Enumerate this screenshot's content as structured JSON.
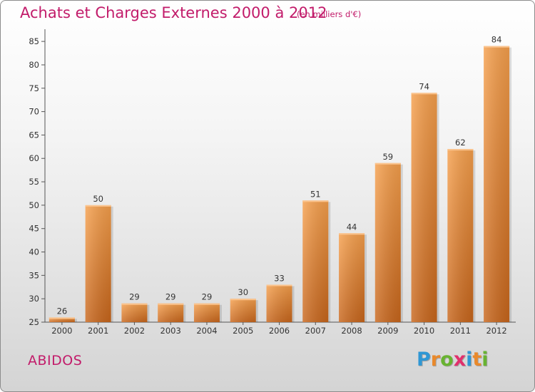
{
  "chart_data": {
    "type": "bar",
    "title": "Achats et Charges Externes 2000 à 2012",
    "subtitle": "(en milliers d'€)",
    "categories": [
      "2000",
      "2001",
      "2002",
      "2003",
      "2004",
      "2005",
      "2006",
      "2007",
      "2008",
      "2009",
      "2010",
      "2011",
      "2012"
    ],
    "values": [
      26,
      50,
      29,
      29,
      29,
      30,
      33,
      51,
      44,
      59,
      74,
      62,
      84
    ],
    "ylim": [
      25,
      87
    ],
    "yticks": [
      25,
      30,
      35,
      40,
      45,
      50,
      55,
      60,
      65,
      70,
      75,
      80,
      85
    ],
    "grid": false,
    "bar_color_light": "#f6a04d",
    "bar_color_dark": "#c8661c"
  },
  "commune": "ABIDOS",
  "brand": {
    "letters": [
      "P",
      "r",
      "o",
      "x",
      "i",
      "t",
      "i"
    ],
    "colors": [
      "#2f97d4",
      "#e9892b",
      "#68b331",
      "#e1306c",
      "#2f97d4",
      "#e9892b",
      "#68b331"
    ]
  },
  "colors": {
    "title": "#c21b6a",
    "axis": "#333333"
  }
}
